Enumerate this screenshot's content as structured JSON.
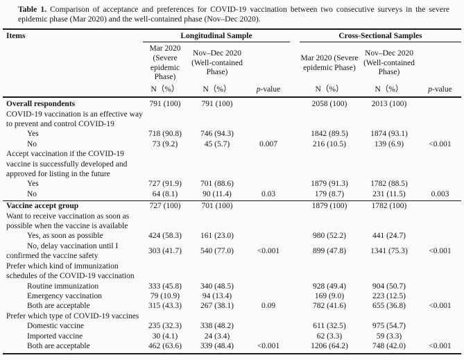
{
  "caption": {
    "label": "Table 1.",
    "text": "Comparison of acceptance and preferences for COVID-19 vaccination between two consecutive surveys in the severe epidemic phase (Mar 2020) and the well-contained phase (Nov–Dec 2020)."
  },
  "header": {
    "items": "Items",
    "group_longitudinal": "Longitudinal Sample",
    "group_cross": "Cross-Sectional Samples",
    "col_mar_long": "Mar 2020 (Severe epidemic Phase)",
    "col_nov_long": "Nov–Dec 2020 (Well-contained Phase)",
    "col_mar_cross": "Mar 2020 (Severe epidemic Phase)",
    "col_nov_cross": "Nov–Dec 2020 (Well-contained Phase)",
    "n_label": "N（%）",
    "p_italic": "p",
    "p_suffix": "-value"
  },
  "rows": [
    {
      "label": "Overall respondents",
      "style": "bold",
      "cells": [
        "791 (100)",
        "791 (100)",
        "",
        "2058 (100)",
        "2013 (100)",
        ""
      ]
    },
    {
      "label": "COVID-19 vaccination is an effective way to prevent and control COVID-19",
      "style": "question",
      "cells": [
        "",
        "",
        "",
        "",
        "",
        ""
      ]
    },
    {
      "label": "Yes",
      "style": "option",
      "cells": [
        "718 (90.8)",
        "746 (94.3)",
        "",
        "1842 (89.5)",
        "1874 (93.1)",
        ""
      ]
    },
    {
      "label": "No",
      "style": "option",
      "cells": [
        "73 (9.2)",
        "45 (5.7)",
        "0.007",
        "216 (10.5)",
        "139 (6.9)",
        "<0.001"
      ]
    },
    {
      "label": "Accept vaccination if the COVID-19 vaccine is successfully developed and approved for listing in the future",
      "style": "question",
      "cells": [
        "",
        "",
        "",
        "",
        "",
        ""
      ]
    },
    {
      "label": "Yes",
      "style": "option",
      "cells": [
        "727 (91.9)",
        "701 (88.6)",
        "",
        "1879 (91.3)",
        "1782 (88.5)",
        ""
      ]
    },
    {
      "label": "No",
      "style": "option",
      "cells": [
        "64 (8.1)",
        "90 (11.4)",
        "0.03",
        "179 (8.7)",
        "231 (11.5)",
        "0.003"
      ],
      "rule_below": true
    },
    {
      "label": "Vaccine accept group",
      "style": "bold",
      "cells": [
        "727 (100)",
        "701 (100)",
        "",
        "1879 (100)",
        "1782 (100)",
        ""
      ]
    },
    {
      "label": "Want to receive vaccination as soon as possible when the vaccine is available",
      "style": "question",
      "cells": [
        "",
        "",
        "",
        "",
        "",
        ""
      ]
    },
    {
      "label": "Yes, as soon as possible",
      "style": "option",
      "cells": [
        "424 (58.3)",
        "161 (23.0)",
        "",
        "980 (52.2)",
        "441 (24.7)",
        ""
      ]
    },
    {
      "label": "No, delay vaccination until I confirmed the vaccine safety",
      "style": "option-hang",
      "cells": [
        "303 (41.7)",
        "540 (77.0)",
        "<0.001",
        "899 (47.8)",
        "1341 (75.3)",
        "<0.001"
      ]
    },
    {
      "label": "Prefer which kind of immunization schedules of the COVID-19 vaccination",
      "style": "question",
      "cells": [
        "",
        "",
        "",
        "",
        "",
        ""
      ]
    },
    {
      "label": "Routine immunization",
      "style": "option",
      "cells": [
        "333 (45.8)",
        "340 (48.5)",
        "",
        "928 (49.4)",
        "904 (50.7)",
        ""
      ]
    },
    {
      "label": "Emergency vaccination",
      "style": "option",
      "cells": [
        "79 (10.9)",
        "94 (13.4)",
        "",
        "169 (9.0)",
        "223 (12.5)",
        ""
      ]
    },
    {
      "label": "Both are acceptable",
      "style": "option",
      "cells": [
        "315 (43.3)",
        "267 (38.1)",
        "0.09",
        "782 (41.6)",
        "655 (36.8)",
        "<0.001"
      ]
    },
    {
      "label": "Prefer which type of COVID-19 vaccines",
      "style": "question",
      "cells": [
        "",
        "",
        "",
        "",
        "",
        ""
      ]
    },
    {
      "label": "Domestic vaccine",
      "style": "option",
      "cells": [
        "235 (32.3)",
        "338 (48.2)",
        "",
        "611 (32.5)",
        "975 (54.7)",
        ""
      ]
    },
    {
      "label": "Imported vaccine",
      "style": "option",
      "cells": [
        "30 (4.1)",
        "24 (3.4)",
        "",
        "62 (3.3)",
        "59 (3.3)",
        ""
      ]
    },
    {
      "label": "Both are acceptable",
      "style": "option",
      "cells": [
        "462 (63.6)",
        "339 (48.4)",
        "<0.001",
        "1206 (64.2)",
        "748 (42.0)",
        "<0.001"
      ]
    }
  ]
}
